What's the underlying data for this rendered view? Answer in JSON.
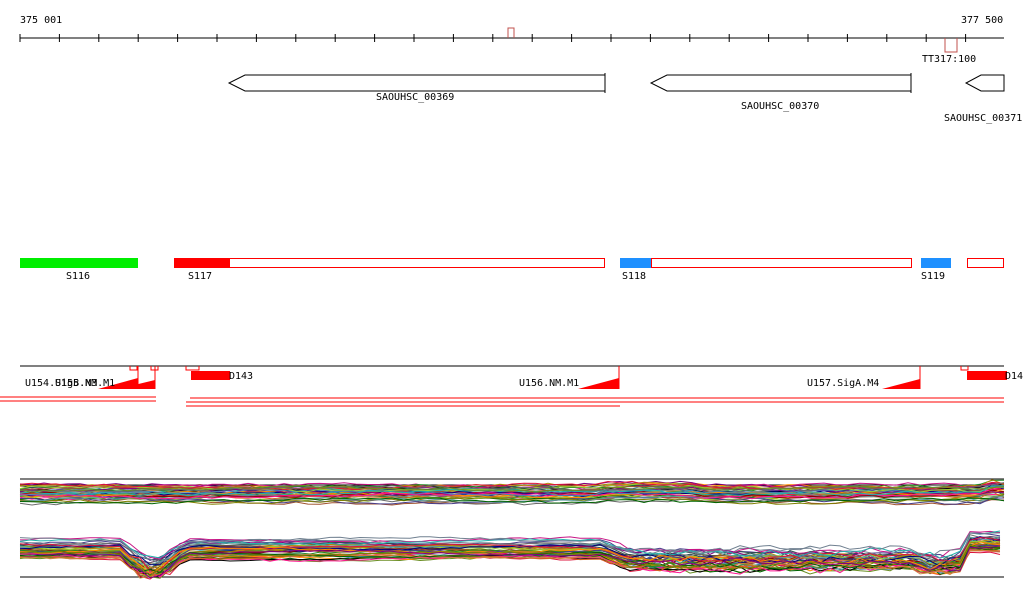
{
  "ruler": {
    "start_label": "375 001",
    "end_label": "377 500"
  },
  "terminator": {
    "label": "TT317:100"
  },
  "genes": [
    {
      "name": "SAOUHSC_00369",
      "strand": "-"
    },
    {
      "name": "SAOUHSC_00370",
      "strand": "-"
    },
    {
      "name": "SAOUHSC_00371",
      "strand": "-"
    }
  ],
  "segments": [
    {
      "name": "S116",
      "color": "#00ee00"
    },
    {
      "name": "S117",
      "color": "#ff0000"
    },
    {
      "name": "S118",
      "color": "#1e90ff"
    },
    {
      "name": "S119",
      "color": "#1e90ff"
    }
  ],
  "features": [
    {
      "name": "U154.SigB.M3"
    },
    {
      "name": "U155.NM.M1"
    },
    {
      "name": "D143"
    },
    {
      "name": "U156.NM.M1"
    },
    {
      "name": "U157.SigA.M4"
    },
    {
      "name": "D14"
    }
  ],
  "colors": {
    "red": "#ff0000",
    "green": "#00ee00",
    "blue": "#1e90ff",
    "black": "#000000",
    "terminator": "#c0504d"
  }
}
